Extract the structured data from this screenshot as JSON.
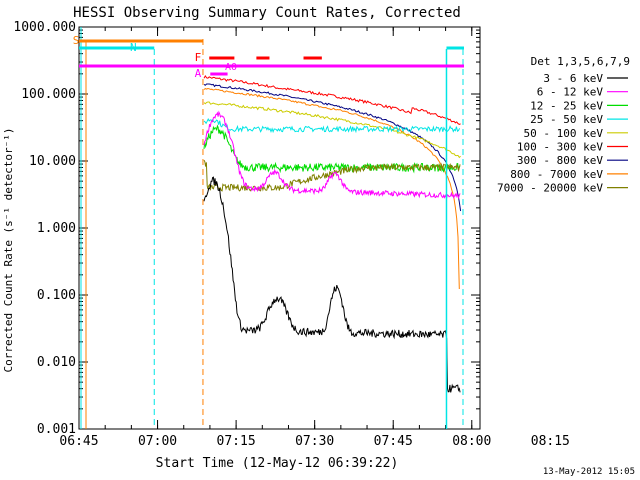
{
  "chart_data": {
    "type": "line",
    "title": "HESSI Observing Summary Count Rates, Corrected",
    "xlabel": "Start Time (12-May-12 06:39:22)",
    "ylabel": "Corrected Count Rate (s⁻¹ detector⁻¹)",
    "yscale": "log",
    "ylim": [
      0.001,
      1000
    ],
    "xlim_minutes": [
      6.63,
      83.2
    ],
    "ytick_labels": [
      "0.001",
      "0.010",
      "0.100",
      "1.000",
      "10.000",
      "100.000",
      "1000.000"
    ],
    "ytick_values": [
      0.001,
      0.01,
      0.1,
      1,
      10,
      100,
      1000
    ],
    "xtick_labels": [
      "06:45",
      "07:00",
      "07:15",
      "07:30",
      "07:45",
      "08:00",
      "08:15"
    ],
    "xtick_values": [
      6.63,
      21.63,
      36.63,
      51.63,
      66.63,
      81.63,
      96.63
    ],
    "legend_title": "Det 1,3,5,6,7,9",
    "legend_position": "right",
    "timestamp": "13-May-2012 15:05",
    "series": [
      {
        "name": "3 - 6 keV",
        "color": "#000000"
      },
      {
        "name": "6 - 12 keV",
        "color": "#ff00ff"
      },
      {
        "name": "12 - 25 keV",
        "color": "#00dd00"
      },
      {
        "name": "25 - 50 keV",
        "color": "#00e5e5"
      },
      {
        "name": "50 - 100 keV",
        "color": "#cccc00"
      },
      {
        "name": "100 - 300 keV",
        "color": "#ff0000"
      },
      {
        "name": "300 - 800 keV",
        "color": "#000080"
      },
      {
        "name": "800 - 7000 keV",
        "color": "#ff8000"
      },
      {
        "name": "7000 - 20000 keV",
        "color": "#808000"
      }
    ],
    "flag_labels": {
      "saa": "S",
      "night": "N",
      "flare": "F",
      "attenuator": "A",
      "a0": "A0"
    }
  }
}
